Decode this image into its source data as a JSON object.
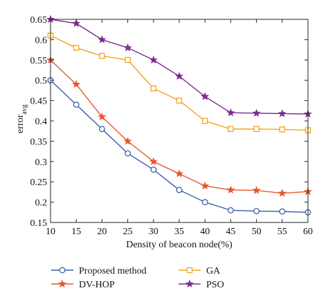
{
  "chart_data": {
    "type": "line",
    "title": "",
    "xlabel": "Density of beacon node(%)",
    "ylabel_main": "error",
    "ylabel_sub": "avg",
    "xlim": [
      10,
      60
    ],
    "ylim": [
      0.15,
      0.65
    ],
    "x": [
      10,
      15,
      20,
      25,
      30,
      35,
      40,
      45,
      50,
      55,
      60
    ],
    "xticks": [
      "10",
      "15",
      "20",
      "25",
      "30",
      "35",
      "40",
      "45",
      "50",
      "55",
      "60"
    ],
    "yticks": [
      "0.15",
      "0.2",
      "0.25",
      "0.3",
      "0.35",
      "0.4",
      "0.45",
      "0.5",
      "0.55",
      "0.6",
      "0.65"
    ],
    "ytick_values": [
      0.15,
      0.2,
      0.25,
      0.3,
      0.35,
      0.4,
      0.45,
      0.5,
      0.55,
      0.6,
      0.65
    ],
    "grid": false,
    "legend_position": "bottom",
    "series": [
      {
        "name": "Proposed method",
        "color": "#3a5ba8",
        "marker": "circle",
        "values": [
          0.5,
          0.44,
          0.38,
          0.32,
          0.28,
          0.23,
          0.2,
          0.18,
          0.178,
          0.177,
          0.175
        ]
      },
      {
        "name": "DV-HOP",
        "color": "#e5572e",
        "marker": "star",
        "values": [
          0.55,
          0.49,
          0.41,
          0.35,
          0.3,
          0.27,
          0.24,
          0.23,
          0.229,
          0.222,
          0.226
        ]
      },
      {
        "name": "GA",
        "color": "#f2a31b",
        "marker": "square",
        "values": [
          0.61,
          0.58,
          0.56,
          0.55,
          0.48,
          0.45,
          0.4,
          0.38,
          0.38,
          0.379,
          0.377
        ]
      },
      {
        "name": "PSO",
        "color": "#7b2a8c",
        "marker": "star",
        "values": [
          0.65,
          0.64,
          0.6,
          0.58,
          0.55,
          0.51,
          0.46,
          0.42,
          0.419,
          0.418,
          0.417
        ]
      }
    ],
    "legend_layout": [
      [
        "Proposed method",
        "GA"
      ],
      [
        "DV-HOP",
        "PSO"
      ]
    ]
  }
}
